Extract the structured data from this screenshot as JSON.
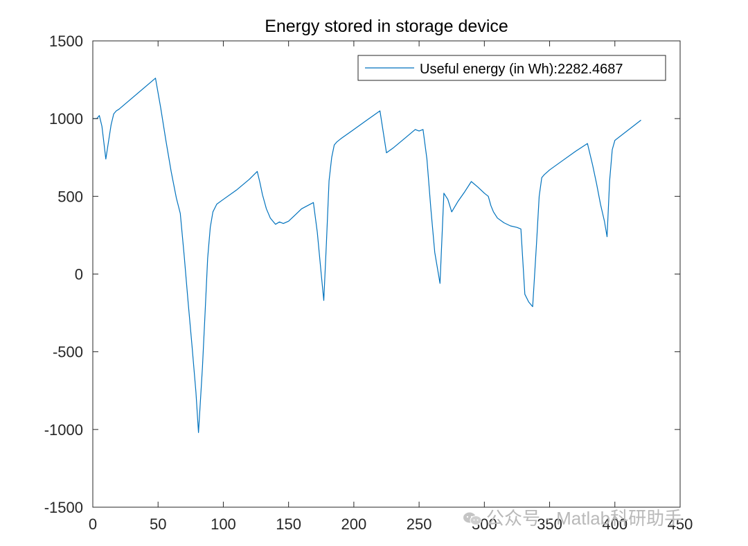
{
  "chart_data": {
    "type": "line",
    "title": "Energy stored in storage device",
    "xlabel": "",
    "ylabel": "",
    "xlim": [
      0,
      450
    ],
    "ylim": [
      -1500,
      1500
    ],
    "xticks": [
      0,
      50,
      100,
      150,
      200,
      250,
      300,
      350,
      400,
      450
    ],
    "yticks": [
      -1500,
      -1000,
      -500,
      0,
      500,
      1000,
      1500
    ],
    "grid": false,
    "legend_position": "top-right",
    "series": [
      {
        "name": "Useful energy (in Wh):2282.4687",
        "color": "#0072BD",
        "x": [
          0,
          3,
          5,
          7,
          10,
          12,
          14,
          16,
          18,
          20,
          48,
          52,
          56,
          60,
          64,
          67,
          70,
          73,
          76,
          79,
          81,
          84,
          86,
          88,
          90,
          92,
          95,
          100,
          110,
          120,
          126,
          128,
          130,
          133,
          136,
          140,
          143,
          146,
          150,
          155,
          160,
          169,
          172,
          175,
          177,
          179,
          181,
          183,
          185,
          187,
          190,
          200,
          210,
          220,
          225,
          230,
          240,
          247,
          250,
          253,
          256,
          259,
          262,
          266,
          269,
          272,
          275,
          280,
          285,
          290,
          295,
          300,
          303,
          305,
          307,
          310,
          315,
          320,
          325,
          328,
          331,
          334,
          337,
          340,
          342,
          344,
          346,
          350,
          360,
          370,
          379,
          383,
          386,
          389,
          392,
          394,
          396,
          398,
          400,
          420
        ],
        "y": [
          1000,
          1000,
          1020,
          950,
          740,
          850,
          960,
          1030,
          1050,
          1060,
          1260,
          1070,
          860,
          660,
          490,
          390,
          120,
          -180,
          -460,
          -760,
          -1020,
          -600,
          -250,
          100,
          300,
          400,
          450,
          480,
          540,
          610,
          660,
          590,
          510,
          420,
          360,
          320,
          335,
          325,
          340,
          380,
          420,
          460,
          270,
          0,
          -170,
          200,
          600,
          750,
          830,
          850,
          870,
          930,
          990,
          1050,
          780,
          810,
          880,
          930,
          920,
          930,
          740,
          420,
          140,
          -60,
          520,
          480,
          400,
          470,
          530,
          595,
          560,
          520,
          500,
          440,
          400,
          360,
          330,
          310,
          300,
          290,
          -130,
          -180,
          -210,
          200,
          500,
          620,
          640,
          670,
          730,
          790,
          840,
          700,
          580,
          450,
          340,
          240,
          600,
          800,
          860,
          990
        ]
      }
    ]
  },
  "watermark": {
    "text": "公众号 · Matlab科研助手",
    "icon": "wechat-icon"
  }
}
